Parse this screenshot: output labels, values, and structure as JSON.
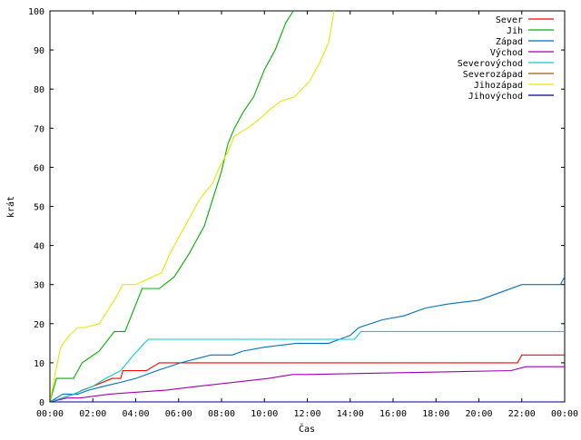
{
  "chart_data": {
    "type": "line",
    "title": "",
    "xlabel": "Čas",
    "ylabel": "krát",
    "xlim": [
      0,
      24
    ],
    "ylim": [
      0,
      100
    ],
    "x_unit": "hours since 00:00",
    "x_ticks": [
      {
        "v": 0,
        "label": "00:00"
      },
      {
        "v": 2,
        "label": "02:00"
      },
      {
        "v": 4,
        "label": "04:00"
      },
      {
        "v": 6,
        "label": "06:00"
      },
      {
        "v": 8,
        "label": "08:00"
      },
      {
        "v": 10,
        "label": "10:00"
      },
      {
        "v": 12,
        "label": "12:00"
      },
      {
        "v": 14,
        "label": "14:00"
      },
      {
        "v": 16,
        "label": "16:00"
      },
      {
        "v": 18,
        "label": "18:00"
      },
      {
        "v": 20,
        "label": "20:00"
      },
      {
        "v": 22,
        "label": "22:00"
      },
      {
        "v": 24,
        "label": "00:00"
      }
    ],
    "y_ticks": [
      0,
      10,
      20,
      30,
      40,
      50,
      60,
      70,
      80,
      90,
      100
    ],
    "grid": false,
    "legend_position": "top-right",
    "series": [
      {
        "name": "Sever",
        "color": "#ff0000",
        "x": [
          0,
          1.15,
          1.5,
          2.0,
          2.9,
          3.3,
          3.4,
          4.5,
          4.8,
          5.1,
          21.8,
          22.0,
          24.0
        ],
        "y": [
          0,
          2,
          3,
          4,
          6,
          6,
          8,
          8,
          9,
          10,
          10,
          12,
          12
        ]
      },
      {
        "name": "Jih",
        "color": "#00b000",
        "x": [
          0,
          0.3,
          0.6,
          1.1,
          1.5,
          2.3,
          3.0,
          3.5,
          4.3,
          5.1,
          5.8,
          6.5,
          7.2,
          7.6,
          8.0,
          8.3,
          8.6,
          9.0,
          9.5,
          10.0,
          10.5,
          11.0,
          11.35
        ],
        "y": [
          0,
          6,
          6,
          6,
          10,
          13,
          18,
          18,
          29,
          29,
          32,
          38,
          45,
          52,
          59,
          66,
          70,
          74,
          78,
          85,
          90,
          97,
          100
        ]
      },
      {
        "name": "Západ",
        "color": "#0070c0",
        "x": [
          0,
          0.3,
          0.6,
          1.3,
          1.8,
          2.5,
          3.3,
          4.0,
          5.0,
          6.1,
          7.5,
          8.5,
          9.0,
          10.0,
          11.5,
          13.0,
          14.0,
          14.4,
          15.5,
          16.5,
          17.5,
          18.5,
          20.0,
          21.0,
          22.0,
          23.8,
          24.0
        ],
        "y": [
          0,
          1,
          2,
          2,
          3,
          4,
          5,
          6,
          8,
          10,
          12,
          12,
          13,
          14,
          15,
          15,
          17,
          19,
          21,
          22,
          24,
          25,
          26,
          28,
          30,
          30,
          32
        ]
      },
      {
        "name": "Východ",
        "color": "#a000b0",
        "x": [
          0,
          0.8,
          1.4,
          2.8,
          5.4,
          6.9,
          10.2,
          11.3,
          12.0,
          21.5,
          22.2,
          24.0
        ],
        "y": [
          0,
          1,
          1,
          2,
          3,
          4,
          6,
          7,
          7,
          8,
          9,
          9
        ]
      },
      {
        "name": "Severovýchod",
        "color": "#00d0d0",
        "x": [
          0,
          1.1,
          2.0,
          2.6,
          3.3,
          3.9,
          4.4,
          4.6,
          14.2,
          14.5,
          24.0
        ],
        "y": [
          0,
          2,
          4,
          6,
          8,
          12,
          15,
          16,
          16,
          18,
          18
        ]
      },
      {
        "name": "Severozápad",
        "color": "#9a5a10",
        "x": [
          0,
          24.0
        ],
        "y": [
          0,
          0
        ]
      },
      {
        "name": "Jihozápad",
        "color": "#e8e800",
        "x": [
          0,
          0.2,
          0.5,
          0.9,
          1.3,
          1.6,
          2.3,
          3.0,
          3.4,
          4.0,
          5.2,
          5.6,
          6.0,
          6.5,
          7.0,
          7.6,
          7.9,
          8.3,
          8.6,
          9.2,
          9.7,
          10.3,
          10.8,
          11.4,
          12.1,
          12.6,
          13.0,
          13.25
        ],
        "y": [
          0,
          6,
          14,
          17,
          19,
          19,
          20,
          26,
          30,
          30,
          33,
          38,
          42,
          47,
          52,
          56,
          60,
          64,
          68,
          70,
          72,
          75,
          77,
          78,
          82,
          87,
          92,
          100
        ]
      },
      {
        "name": "Jihovýchod",
        "color": "#000090",
        "x": [
          0,
          24.0
        ],
        "y": [
          0,
          0
        ]
      }
    ]
  }
}
